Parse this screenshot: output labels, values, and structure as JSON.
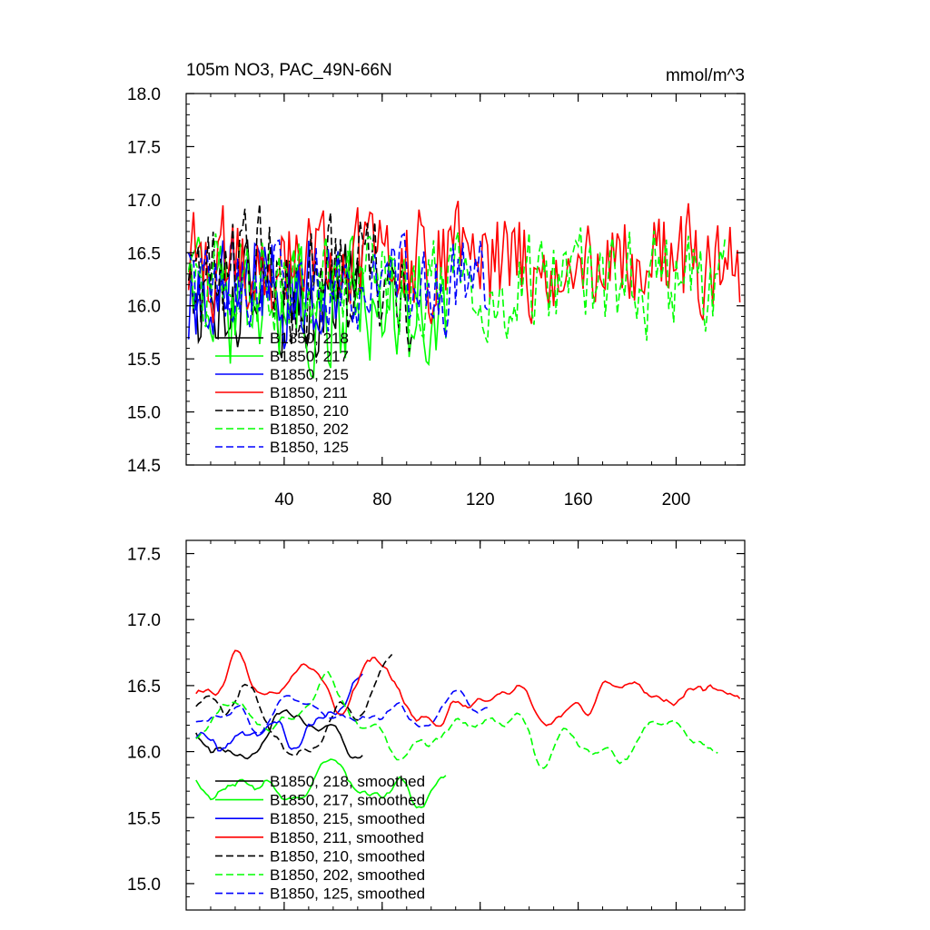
{
  "chart_data": [
    {
      "type": "line",
      "title": "105m NO3, PAC_49N-66N",
      "units": "mmol/m^3",
      "xlim": [
        0,
        228
      ],
      "ylim": [
        14.5,
        18.0
      ],
      "xticks": [
        40,
        80,
        120,
        160,
        200
      ],
      "yticks": [
        14.5,
        15.0,
        15.5,
        16.0,
        16.5,
        17.0,
        17.5,
        18.0
      ],
      "ytick_labels": [
        "14.5",
        "15.0",
        "15.5",
        "16.0",
        "16.5",
        "17.0",
        "17.5",
        "18.0"
      ],
      "legend_position": "lower-left",
      "series": [
        {
          "name": "B1850, 218",
          "color": "#000000",
          "dash": "solid",
          "start": 1,
          "end": 72,
          "base": 16.1,
          "amp": 0.75,
          "seed": 1
        },
        {
          "name": "B1850, 217",
          "color": "#00ff00",
          "dash": "solid",
          "start": 1,
          "end": 106,
          "base": 16.0,
          "amp": 0.85,
          "seed": 2
        },
        {
          "name": "B1850, 215",
          "color": "#0000ff",
          "dash": "solid",
          "start": 1,
          "end": 62,
          "base": 16.2,
          "amp": 0.8,
          "seed": 3
        },
        {
          "name": "B1850, 211",
          "color": "#ff0000",
          "dash": "solid",
          "start": 1,
          "end": 226,
          "base": 16.4,
          "amp": 0.7,
          "seed": 4
        },
        {
          "name": "B1850, 210",
          "color": "#000000",
          "dash": "dashed",
          "start": 1,
          "end": 92,
          "base": 16.3,
          "amp": 0.85,
          "seed": 5
        },
        {
          "name": "B1850, 202",
          "color": "#00ff00",
          "dash": "dashed",
          "start": 1,
          "end": 220,
          "base": 16.2,
          "amp": 0.65,
          "seed": 6
        },
        {
          "name": "B1850, 125",
          "color": "#0000ff",
          "dash": "dashed",
          "start": 1,
          "end": 123,
          "base": 16.2,
          "amp": 0.6,
          "seed": 7
        }
      ]
    },
    {
      "type": "line",
      "title": "",
      "xlim": [
        0,
        228
      ],
      "ylim": [
        14.8,
        17.6
      ],
      "xticks": [
        40,
        80,
        120,
        160,
        200
      ],
      "yticks": [
        15.0,
        15.5,
        16.0,
        16.5,
        17.0,
        17.5
      ],
      "ytick_labels": [
        "15.0",
        "15.5",
        "16.0",
        "16.5",
        "17.0",
        "17.5"
      ],
      "legend_position": "lower-left",
      "series": [
        {
          "name": "B1850, 218, smoothed",
          "color": "#000000",
          "dash": "solid",
          "start": 4,
          "end": 72,
          "base": 16.0,
          "amp": 0.55,
          "seed": 11
        },
        {
          "name": "B1850, 217, smoothed",
          "color": "#00ff00",
          "dash": "solid",
          "start": 4,
          "end": 106,
          "base": 15.9,
          "amp": 0.55,
          "seed": 12
        },
        {
          "name": "B1850, 215, smoothed",
          "color": "#0000ff",
          "dash": "solid",
          "start": 4,
          "end": 72,
          "base": 16.2,
          "amp": 0.6,
          "seed": 13
        },
        {
          "name": "B1850, 211, smoothed",
          "color": "#ff0000",
          "dash": "solid",
          "start": 4,
          "end": 226,
          "base": 16.4,
          "amp": 0.5,
          "seed": 14
        },
        {
          "name": "B1850, 210, smoothed",
          "color": "#000000",
          "dash": "dashed",
          "start": 4,
          "end": 84,
          "base": 16.3,
          "amp": 0.6,
          "seed": 15
        },
        {
          "name": "B1850, 202, smoothed",
          "color": "#00ff00",
          "dash": "dashed",
          "start": 4,
          "end": 217,
          "base": 16.2,
          "amp": 0.5,
          "seed": 16
        },
        {
          "name": "B1850, 125, smoothed",
          "color": "#0000ff",
          "dash": "dashed",
          "start": 4,
          "end": 124,
          "base": 16.3,
          "amp": 0.35,
          "seed": 17
        }
      ]
    }
  ]
}
